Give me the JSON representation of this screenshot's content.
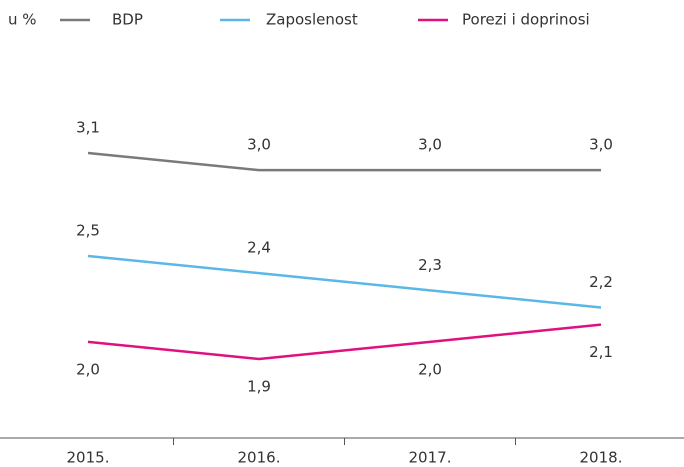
{
  "chart_data": {
    "type": "line",
    "unit_label": "u %",
    "categories": [
      "2015.",
      "2016.",
      "2017.",
      "2018."
    ],
    "series": [
      {
        "name": "BDP",
        "color": "#7a7a7a",
        "values": [
          3.1,
          3.0,
          3.0,
          3.0
        ],
        "value_labels": [
          "3,1",
          "3,0",
          "3,0",
          "3,0"
        ]
      },
      {
        "name": "Zaposlenost",
        "color": "#5bb8e6",
        "values": [
          2.5,
          2.4,
          2.3,
          2.2
        ],
        "value_labels": [
          "2,5",
          "2,4",
          "2,3",
          "2,2"
        ]
      },
      {
        "name": "Porezi i doprinosi",
        "color": "#e0107f",
        "values": [
          2.0,
          1.9,
          2.0,
          2.1
        ],
        "value_labels": [
          "2,0",
          "1,9",
          "2,0",
          "2,1"
        ]
      }
    ],
    "ylim": [
      1.5,
      3.5
    ]
  }
}
